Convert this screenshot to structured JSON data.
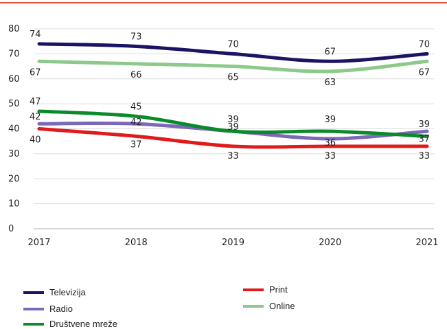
{
  "chart_data": {
    "type": "line",
    "title": "",
    "xlabel": "",
    "ylabel": "",
    "categories": [
      "2017",
      "2018",
      "2019",
      "2020",
      "2021"
    ],
    "ylim": [
      0,
      80
    ],
    "yticks": [
      "0",
      "10",
      "20",
      "30",
      "40",
      "50",
      "60",
      "70",
      "80"
    ],
    "grid": true,
    "legend_position": "bottom",
    "series": [
      {
        "name": "Televizija",
        "color": "#1b1464",
        "values": [
          74,
          73,
          70,
          67,
          70
        ]
      },
      {
        "name": "Radio",
        "color": "#7b68b8",
        "values": [
          42,
          42,
          39,
          36,
          39
        ]
      },
      {
        "name": "Društvene mreže",
        "color": "#0a8a2a",
        "values": [
          47,
          45,
          39,
          39,
          37
        ]
      },
      {
        "name": "Print",
        "color": "#e01b1b",
        "values": [
          40,
          37,
          33,
          33,
          33
        ]
      },
      {
        "name": "Online",
        "color": "#8cc98a",
        "values": [
          67,
          66,
          65,
          63,
          67
        ]
      }
    ]
  },
  "colors": {
    "top_rule": "#e8493a",
    "grid": "#dddddd",
    "axis": "#aaaaaa"
  }
}
